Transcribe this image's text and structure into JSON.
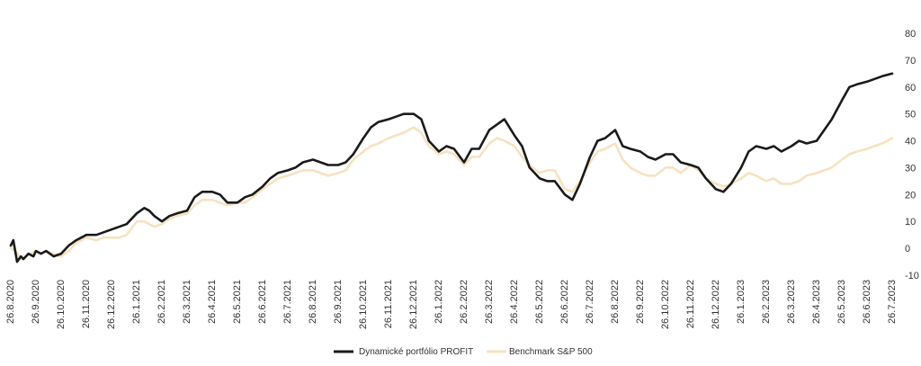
{
  "chart_data": {
    "type": "line",
    "title": "",
    "xlabel": "",
    "ylabel": "",
    "ylim": [
      -10,
      80
    ],
    "y_ticks": [
      80,
      70,
      60,
      50,
      40,
      30,
      20,
      10,
      0,
      -10
    ],
    "y_axis_side": "right",
    "grid": false,
    "legend_position": "bottom-center",
    "x_tick_labels": [
      "26.8.2020",
      "26.9.2020",
      "26.10.2020",
      "26.11.2020",
      "26.12.2020",
      "26.1.2021",
      "26.2.2021",
      "26.3.2021",
      "26.4.2021",
      "26.5.2021",
      "26.6.2021",
      "26.7.2021",
      "26.8.2021",
      "26.9.2021",
      "26.10.2021",
      "26.11.2021",
      "26.12.2021",
      "26.1.2022",
      "26.2.2022",
      "26.3.2022",
      "26.4.2022",
      "26.5.2022",
      "26.6.2022",
      "26.7.2022",
      "26.8.2022",
      "26.9.2022",
      "26.10.2022",
      "26.11.2022",
      "26.12.2022",
      "26.1.2023",
      "26.2.2023",
      "26.3.2023",
      "26.4.2023",
      "26.5.2023",
      "26.6.2023",
      "26.7.2023"
    ],
    "series": [
      {
        "name": "Dynamické portfólio PROFIT",
        "color": "#1a1a1a",
        "points": [
          [
            0,
            1
          ],
          [
            0.1,
            3
          ],
          [
            0.25,
            -5
          ],
          [
            0.4,
            -3
          ],
          [
            0.5,
            -4
          ],
          [
            0.7,
            -2
          ],
          [
            0.9,
            -3
          ],
          [
            1,
            -1
          ],
          [
            1.2,
            -2
          ],
          [
            1.4,
            -1
          ],
          [
            1.7,
            -3
          ],
          [
            2,
            -2
          ],
          [
            2.3,
            1
          ],
          [
            2.6,
            3
          ],
          [
            2.8,
            4
          ],
          [
            3,
            5
          ],
          [
            3.4,
            5
          ],
          [
            3.7,
            6
          ],
          [
            4,
            7
          ],
          [
            4.3,
            8
          ],
          [
            4.6,
            9
          ],
          [
            5,
            13
          ],
          [
            5.3,
            15
          ],
          [
            5.5,
            14
          ],
          [
            5.7,
            12
          ],
          [
            6,
            10
          ],
          [
            6.3,
            12
          ],
          [
            6.6,
            13
          ],
          [
            7,
            14
          ],
          [
            7.3,
            19
          ],
          [
            7.6,
            21
          ],
          [
            8,
            21
          ],
          [
            8.3,
            20
          ],
          [
            8.6,
            17
          ],
          [
            9,
            17
          ],
          [
            9.3,
            19
          ],
          [
            9.6,
            20
          ],
          [
            10,
            23
          ],
          [
            10.3,
            26
          ],
          [
            10.6,
            28
          ],
          [
            11,
            29
          ],
          [
            11.3,
            30
          ],
          [
            11.6,
            32
          ],
          [
            12,
            33
          ],
          [
            12.3,
            32
          ],
          [
            12.6,
            31
          ],
          [
            13,
            31
          ],
          [
            13.3,
            32
          ],
          [
            13.6,
            35
          ],
          [
            14,
            41
          ],
          [
            14.3,
            45
          ],
          [
            14.6,
            47
          ],
          [
            15,
            48
          ],
          [
            15.3,
            49
          ],
          [
            15.6,
            50
          ],
          [
            16,
            50
          ],
          [
            16.3,
            48
          ],
          [
            16.6,
            40
          ],
          [
            17,
            36
          ],
          [
            17.3,
            38
          ],
          [
            17.6,
            37
          ],
          [
            18,
            32
          ],
          [
            18.3,
            37
          ],
          [
            18.6,
            37
          ],
          [
            19,
            44
          ],
          [
            19.3,
            46
          ],
          [
            19.6,
            48
          ],
          [
            20,
            42
          ],
          [
            20.3,
            38
          ],
          [
            20.6,
            30
          ],
          [
            21,
            26
          ],
          [
            21.3,
            25
          ],
          [
            21.6,
            25
          ],
          [
            22,
            20
          ],
          [
            22.3,
            18
          ],
          [
            22.6,
            24
          ],
          [
            23,
            34
          ],
          [
            23.3,
            40
          ],
          [
            23.6,
            41
          ],
          [
            24,
            44
          ],
          [
            24.3,
            38
          ],
          [
            24.6,
            37
          ],
          [
            25,
            36
          ],
          [
            25.3,
            34
          ],
          [
            25.6,
            33
          ],
          [
            26,
            35
          ],
          [
            26.3,
            35
          ],
          [
            26.6,
            32
          ],
          [
            27,
            31
          ],
          [
            27.3,
            30
          ],
          [
            27.6,
            26
          ],
          [
            28,
            22
          ],
          [
            28.3,
            21
          ],
          [
            28.6,
            24
          ],
          [
            29,
            30
          ],
          [
            29.3,
            36
          ],
          [
            29.6,
            38
          ],
          [
            30,
            37
          ],
          [
            30.3,
            38
          ],
          [
            30.6,
            36
          ],
          [
            31,
            38
          ],
          [
            31.3,
            40
          ],
          [
            31.6,
            39
          ],
          [
            32,
            40
          ],
          [
            32.3,
            44
          ],
          [
            32.6,
            48
          ],
          [
            33,
            55
          ],
          [
            33.3,
            60
          ],
          [
            33.6,
            61
          ],
          [
            34,
            62
          ],
          [
            34.3,
            63
          ],
          [
            34.6,
            64
          ],
          [
            35,
            65
          ]
        ]
      },
      {
        "name": "Benchmark S&P 500",
        "color": "#f6e2c0",
        "points": [
          [
            0,
            0
          ],
          [
            0.2,
            -1
          ],
          [
            0.4,
            -4
          ],
          [
            0.6,
            -3
          ],
          [
            0.8,
            -2
          ],
          [
            1,
            -1
          ],
          [
            1.2,
            -2
          ],
          [
            1.4,
            -1
          ],
          [
            1.7,
            -2
          ],
          [
            2,
            -3
          ],
          [
            2.3,
            -1
          ],
          [
            2.6,
            2
          ],
          [
            3,
            4
          ],
          [
            3.4,
            3
          ],
          [
            3.7,
            4
          ],
          [
            4,
            4
          ],
          [
            4.3,
            4
          ],
          [
            4.6,
            5
          ],
          [
            5,
            10
          ],
          [
            5.3,
            10
          ],
          [
            5.5,
            9
          ],
          [
            5.7,
            8
          ],
          [
            6,
            9
          ],
          [
            6.3,
            11
          ],
          [
            6.6,
            12
          ],
          [
            7,
            13
          ],
          [
            7.3,
            16
          ],
          [
            7.6,
            18
          ],
          [
            8,
            18
          ],
          [
            8.3,
            17
          ],
          [
            8.6,
            16
          ],
          [
            9,
            17
          ],
          [
            9.3,
            17
          ],
          [
            9.6,
            19
          ],
          [
            10,
            22
          ],
          [
            10.3,
            24
          ],
          [
            10.6,
            26
          ],
          [
            11,
            27
          ],
          [
            11.3,
            28
          ],
          [
            11.6,
            29
          ],
          [
            12,
            29
          ],
          [
            12.3,
            28
          ],
          [
            12.6,
            27
          ],
          [
            13,
            28
          ],
          [
            13.3,
            29
          ],
          [
            13.6,
            33
          ],
          [
            14,
            36
          ],
          [
            14.3,
            38
          ],
          [
            14.6,
            39
          ],
          [
            15,
            41
          ],
          [
            15.3,
            42
          ],
          [
            15.6,
            43
          ],
          [
            16,
            45
          ],
          [
            16.3,
            43
          ],
          [
            16.6,
            38
          ],
          [
            17,
            35
          ],
          [
            17.3,
            36
          ],
          [
            17.6,
            35
          ],
          [
            18,
            31
          ],
          [
            18.3,
            34
          ],
          [
            18.6,
            34
          ],
          [
            19,
            39
          ],
          [
            19.3,
            41
          ],
          [
            19.6,
            40
          ],
          [
            20,
            38
          ],
          [
            20.3,
            34
          ],
          [
            20.6,
            31
          ],
          [
            21,
            28
          ],
          [
            21.3,
            29
          ],
          [
            21.6,
            29
          ],
          [
            22,
            22
          ],
          [
            22.3,
            21
          ],
          [
            22.6,
            25
          ],
          [
            23,
            32
          ],
          [
            23.3,
            36
          ],
          [
            23.6,
            37
          ],
          [
            24,
            39
          ],
          [
            24.3,
            33
          ],
          [
            24.6,
            30
          ],
          [
            25,
            28
          ],
          [
            25.3,
            27
          ],
          [
            25.6,
            27
          ],
          [
            26,
            30
          ],
          [
            26.3,
            30
          ],
          [
            26.6,
            28
          ],
          [
            27,
            31
          ],
          [
            27.3,
            29
          ],
          [
            27.6,
            26
          ],
          [
            28,
            24
          ],
          [
            28.3,
            23
          ],
          [
            28.6,
            24
          ],
          [
            29,
            26
          ],
          [
            29.3,
            28
          ],
          [
            29.6,
            27
          ],
          [
            30,
            25
          ],
          [
            30.3,
            26
          ],
          [
            30.6,
            24
          ],
          [
            31,
            24
          ],
          [
            31.3,
            25
          ],
          [
            31.6,
            27
          ],
          [
            32,
            28
          ],
          [
            32.3,
            29
          ],
          [
            32.6,
            30
          ],
          [
            33,
            33
          ],
          [
            33.3,
            35
          ],
          [
            33.6,
            36
          ],
          [
            34,
            37
          ],
          [
            34.3,
            38
          ],
          [
            34.6,
            39
          ],
          [
            35,
            41
          ]
        ]
      }
    ]
  }
}
